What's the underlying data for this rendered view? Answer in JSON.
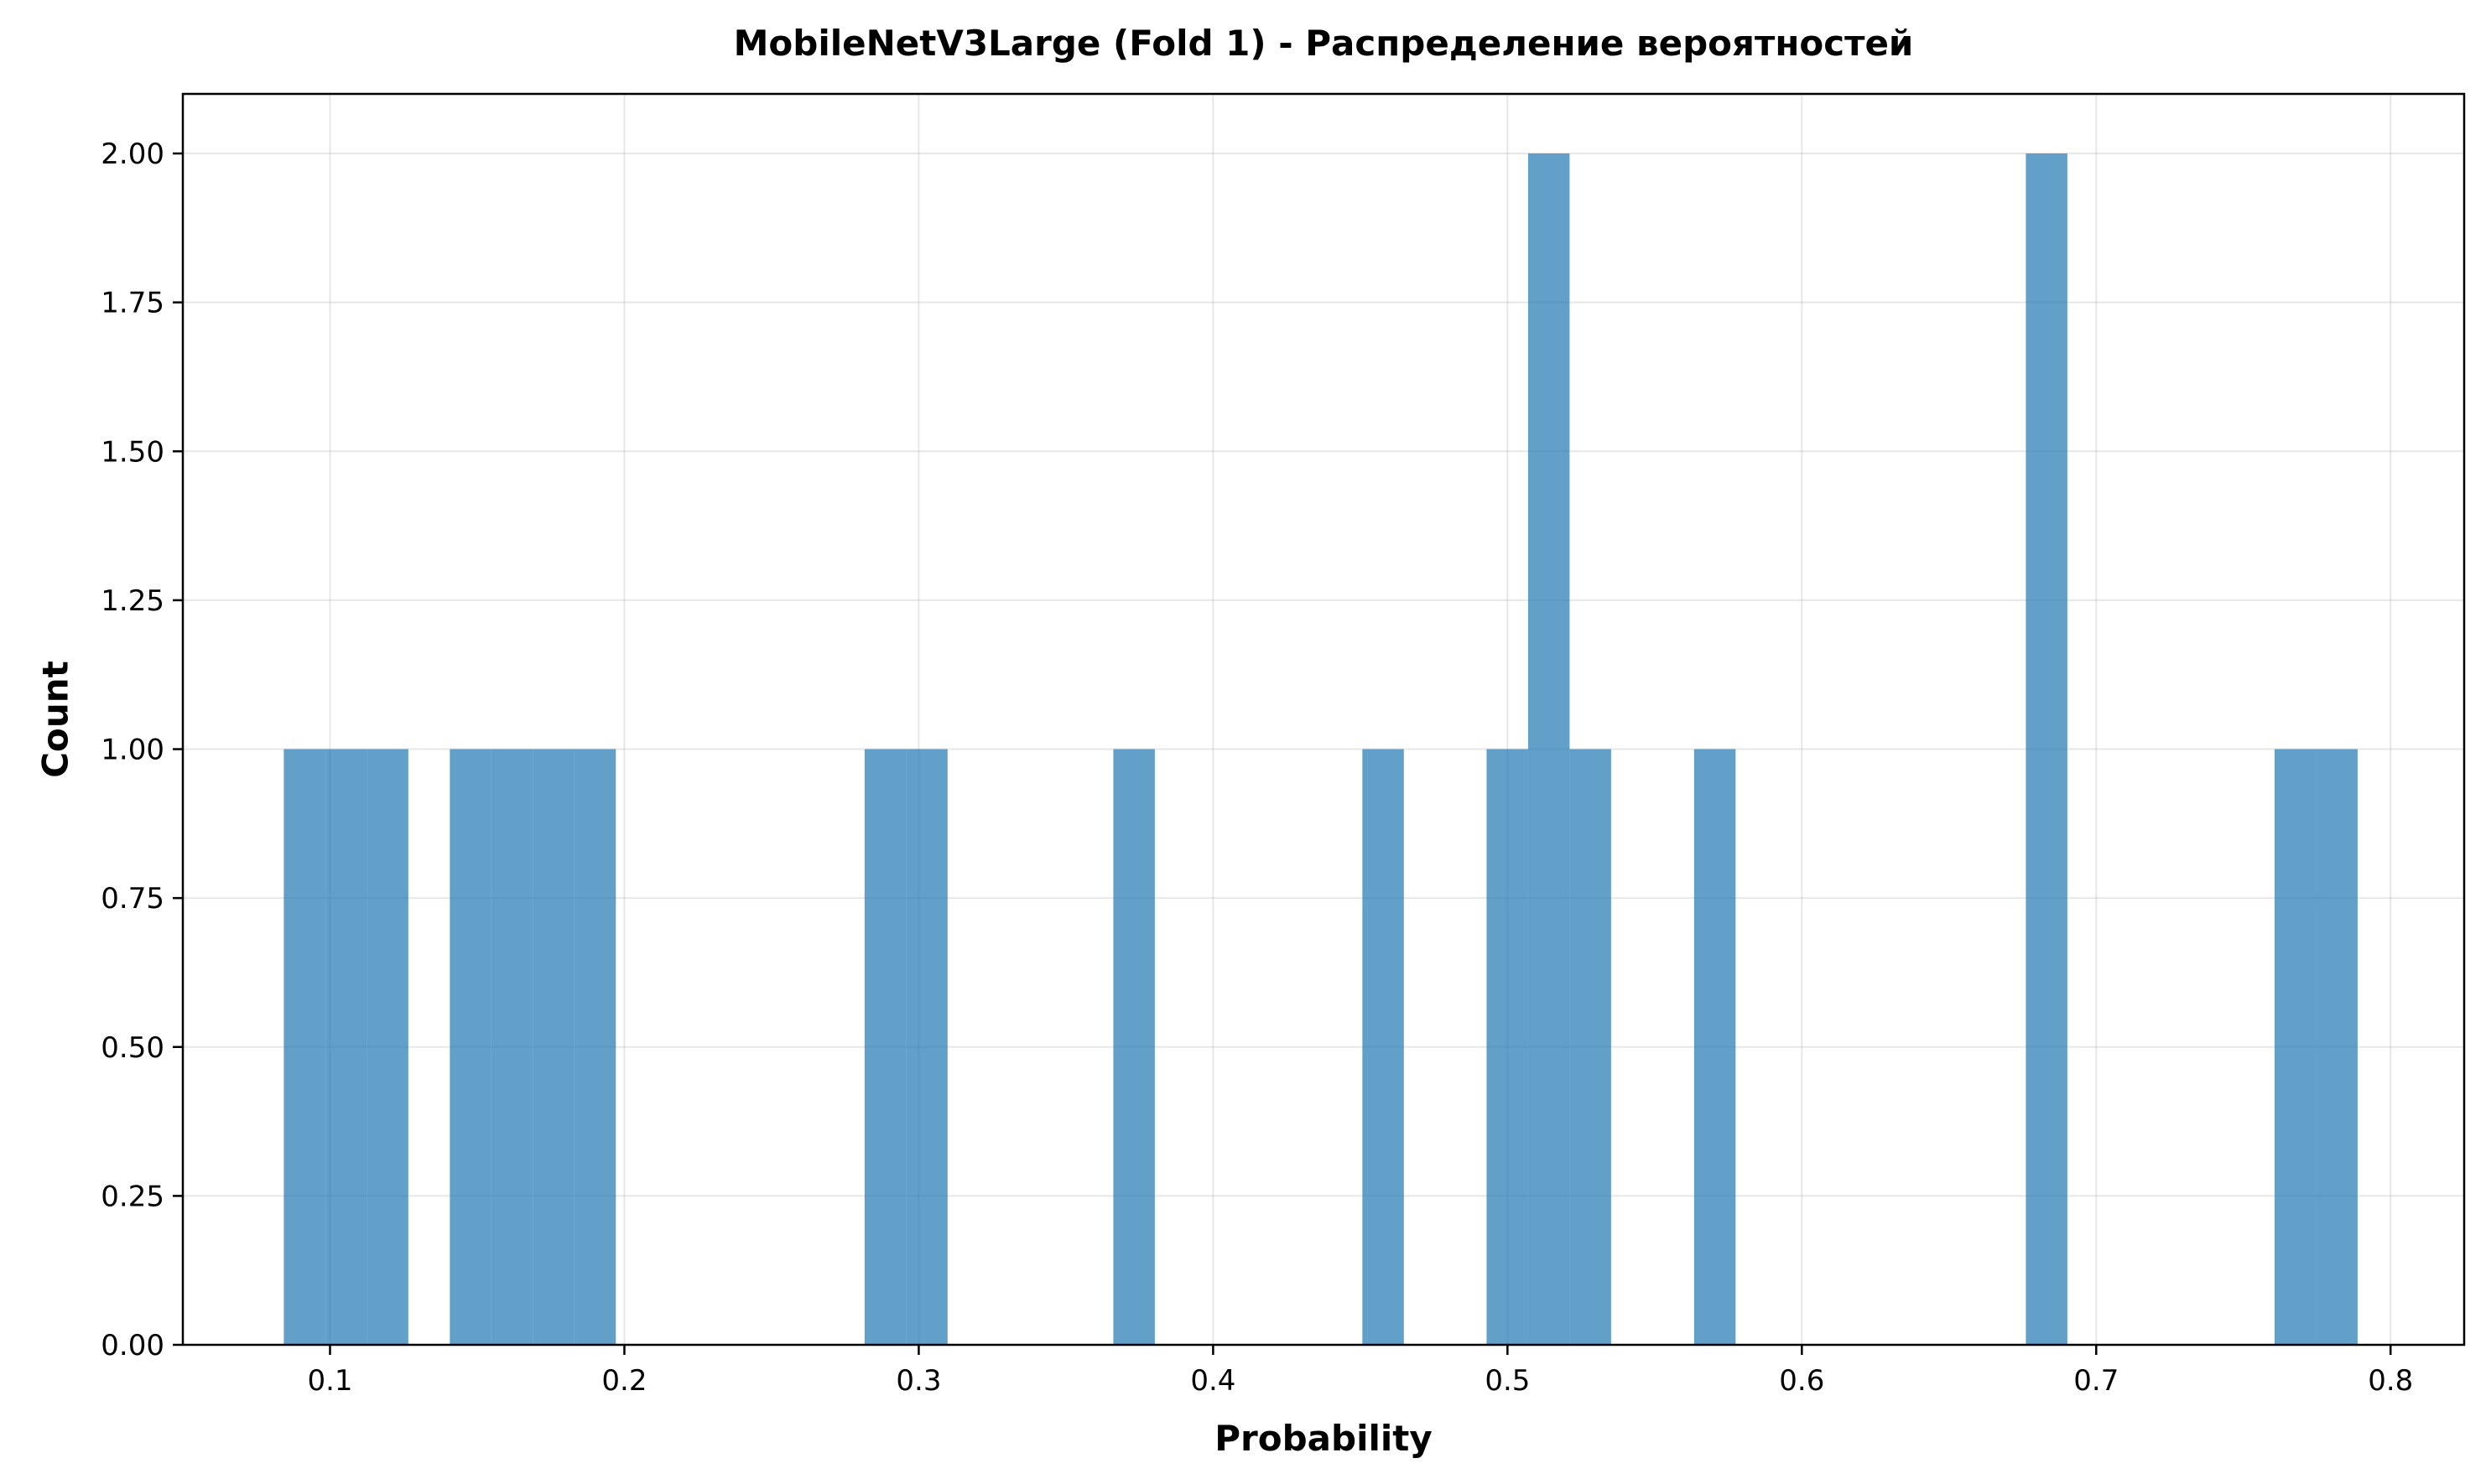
{
  "chart_data": {
    "type": "bar",
    "subtype": "histogram",
    "title": "MobileNetV3Large (Fold 1) - Распределение вероятностей",
    "xlabel": "Probability",
    "ylabel": "Count",
    "xlim": [
      0.05,
      0.825
    ],
    "ylim": [
      0,
      2.1
    ],
    "x_ticks": [
      "0.1",
      "0.2",
      "0.3",
      "0.4",
      "0.5",
      "0.6",
      "0.7",
      "0.8"
    ],
    "y_ticks": [
      "0.00",
      "0.25",
      "0.50",
      "0.75",
      "1.00",
      "1.25",
      "1.50",
      "1.75",
      "2.00"
    ],
    "grid": true,
    "bar_color": "#1f77b4",
    "bar_opacity": 0.7,
    "bins": [
      {
        "x0": 0.0843,
        "x1": 0.0984,
        "count": 1
      },
      {
        "x0": 0.0984,
        "x1": 0.1125,
        "count": 1
      },
      {
        "x0": 0.1125,
        "x1": 0.1266,
        "count": 1
      },
      {
        "x0": 0.1407,
        "x1": 0.1548,
        "count": 1
      },
      {
        "x0": 0.1548,
        "x1": 0.1689,
        "count": 1
      },
      {
        "x0": 0.1689,
        "x1": 0.183,
        "count": 1
      },
      {
        "x0": 0.183,
        "x1": 0.1971,
        "count": 1
      },
      {
        "x0": 0.2816,
        "x1": 0.2957,
        "count": 1
      },
      {
        "x0": 0.2957,
        "x1": 0.3098,
        "count": 1
      },
      {
        "x0": 0.3661,
        "x1": 0.3802,
        "count": 1
      },
      {
        "x0": 0.4507,
        "x1": 0.4648,
        "count": 1
      },
      {
        "x0": 0.4929,
        "x1": 0.507,
        "count": 1
      },
      {
        "x0": 0.507,
        "x1": 0.5211,
        "count": 2
      },
      {
        "x0": 0.5211,
        "x1": 0.5352,
        "count": 1
      },
      {
        "x0": 0.5634,
        "x1": 0.5775,
        "count": 1
      },
      {
        "x0": 0.6761,
        "x1": 0.6902,
        "count": 2
      },
      {
        "x0": 0.7606,
        "x1": 0.7747,
        "count": 1
      },
      {
        "x0": 0.7747,
        "x1": 0.7888,
        "count": 1
      }
    ]
  }
}
